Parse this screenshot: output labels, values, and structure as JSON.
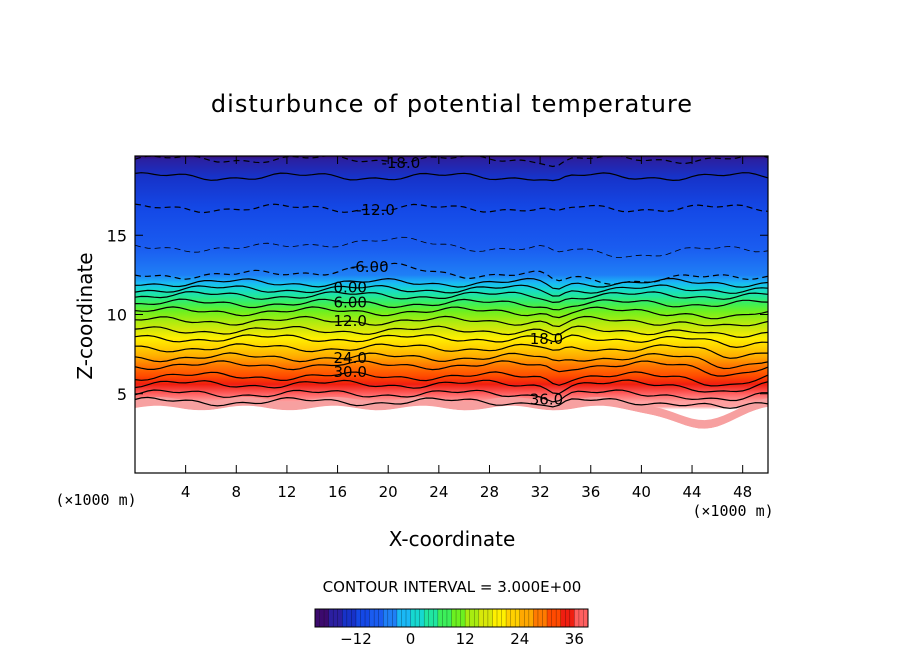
{
  "chart_data": {
    "type": "heatmap",
    "subtype": "filled-contour",
    "title": "disturbunce of potential temperature",
    "xlabel": "X-coordinate",
    "ylabel": "Z-coordinate",
    "x_units": "(×1000 m)",
    "y_units": "(×1000 m)",
    "xlim": [
      0,
      50
    ],
    "ylim": [
      0,
      20
    ],
    "x_ticks": [
      4,
      8,
      12,
      16,
      20,
      24,
      28,
      32,
      36,
      40,
      44,
      48
    ],
    "y_ticks": [
      5,
      10,
      15
    ],
    "grid": false,
    "contour_interval_text": "CONTOUR INTERVAL = 3.000E+00",
    "contour_levels": [
      {
        "value": -18,
        "label": "-18.0",
        "style": "dashed",
        "z": 19.8,
        "label_x": 21
      },
      {
        "value": -15,
        "label": "",
        "style": "solid",
        "z": 18.7
      },
      {
        "value": -12,
        "label": "-12.0",
        "style": "dashed",
        "z": 16.7,
        "label_x": 19
      },
      {
        "value": -9,
        "label": "",
        "style": "dashed-thin",
        "z": 14.2
      },
      {
        "value": -6,
        "label": "-6.00",
        "style": "dashed",
        "z": 12.5,
        "label_x": 18.5
      },
      {
        "value": -3,
        "label": "",
        "style": "solid",
        "z": 12.0
      },
      {
        "value": 0,
        "label": "0.00",
        "style": "solid",
        "z": 11.6,
        "label_x": 17
      },
      {
        "value": 3,
        "label": "",
        "style": "solid",
        "z": 11.2
      },
      {
        "value": 6,
        "label": "6.00",
        "style": "solid",
        "z": 10.7,
        "label_x": 17
      },
      {
        "value": 9,
        "label": "",
        "style": "solid",
        "z": 10.2
      },
      {
        "value": 12,
        "label": "12.0",
        "style": "solid",
        "z": 9.6,
        "label_x": 17
      },
      {
        "value": 15,
        "label": "",
        "style": "solid",
        "z": 9.0
      },
      {
        "value": 18,
        "label": "18.0",
        "style": "solid",
        "z": 8.5,
        "label_x": 32.5
      },
      {
        "value": 21,
        "label": "",
        "style": "solid",
        "z": 7.9
      },
      {
        "value": 24,
        "label": "24.0",
        "style": "solid",
        "z": 7.3,
        "label_x": 17
      },
      {
        "value": 27,
        "label": "",
        "style": "solid",
        "z": 6.8
      },
      {
        "value": 30,
        "label": "30.0",
        "style": "solid",
        "z": 6.1,
        "label_x": 17
      },
      {
        "value": 33,
        "label": "",
        "style": "solid",
        "z": 5.6
      },
      {
        "value": 36,
        "label": "36.0",
        "style": "solid",
        "z": 5.0,
        "label_x": 32.5
      },
      {
        "value": 39,
        "label": "",
        "style": "solid",
        "z": 4.5
      }
    ],
    "colorbar": {
      "min": -21,
      "max": 39,
      "ticks": [
        -12,
        0,
        12,
        24,
        36
      ],
      "tick_labels": [
        "−12",
        "0",
        "12",
        "24",
        "36"
      ]
    },
    "palette": {
      "stops": [
        [
          -21,
          "#3c0a6e"
        ],
        [
          -18,
          "#2b1fa0"
        ],
        [
          -15,
          "#1732c8"
        ],
        [
          -12,
          "#1448e6"
        ],
        [
          -9,
          "#1a5cf0"
        ],
        [
          -6,
          "#1f7ff6"
        ],
        [
          -3,
          "#1ab8f6"
        ],
        [
          0,
          "#16d8d0"
        ],
        [
          3,
          "#20e6a0"
        ],
        [
          6,
          "#3cef5a"
        ],
        [
          9,
          "#6cf020"
        ],
        [
          12,
          "#a8ec10"
        ],
        [
          15,
          "#d8e80a"
        ],
        [
          18,
          "#fff000"
        ],
        [
          21,
          "#ffd000"
        ],
        [
          24,
          "#ffa800"
        ],
        [
          27,
          "#ff7a00"
        ],
        [
          30,
          "#ff4a00"
        ],
        [
          33,
          "#f01e10"
        ],
        [
          36,
          "#ff6060"
        ],
        [
          39,
          "#ffa0a0"
        ]
      ]
    }
  }
}
